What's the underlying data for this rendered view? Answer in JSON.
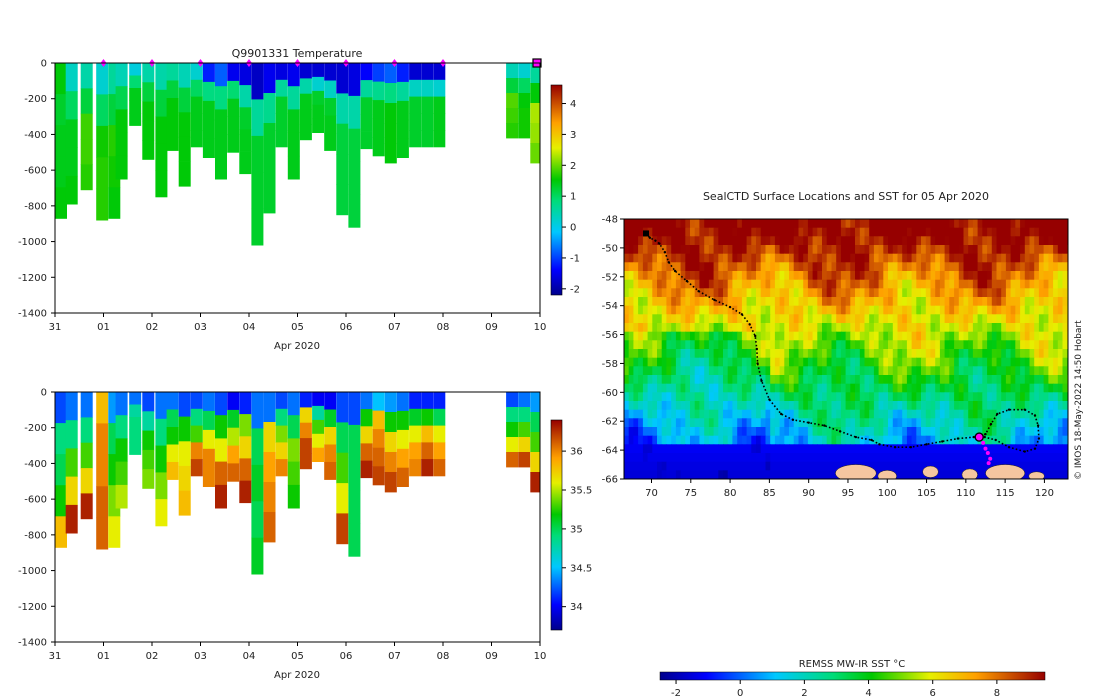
{
  "chart_data": [
    {
      "type": "heatmap",
      "title": "Q9901331  Temperature",
      "xlabel": "Apr 2020",
      "ylabel": "",
      "x_ticks": [
        "31",
        "01",
        "02",
        "03",
        "04",
        "05",
        "06",
        "07",
        "08",
        "09",
        "10"
      ],
      "y_ticks": [
        0,
        -200,
        -400,
        -600,
        -800,
        -1000,
        -1200,
        -1400
      ],
      "ylim": [
        -1400,
        0
      ],
      "colorbar": {
        "ticks": [
          4,
          3,
          2,
          1,
          0,
          -1,
          -2
        ],
        "range": [
          -2.2,
          4.6
        ]
      },
      "marker_days": [
        1,
        2,
        3,
        4,
        5,
        6,
        7,
        8
      ],
      "current_day": 10,
      "profiles": [
        {
          "day": 0.0,
          "depth": 870,
          "v": [
            1.5,
            1.3,
            1.4,
            1.4,
            1.5
          ]
        },
        {
          "day": 0.22,
          "depth": 790,
          "v": [
            0.3,
            1.0,
            1.4,
            1.4,
            1.5
          ]
        },
        {
          "day": 0.53,
          "depth": 710,
          "v": [
            0.5,
            1.2,
            1.8,
            1.8,
            1.7
          ]
        },
        {
          "day": 0.85,
          "depth": 880,
          "v": [
            0.2,
            1.0,
            1.6,
            1.7,
            1.7
          ]
        },
        {
          "day": 1.1,
          "depth": 870,
          "v": [
            0.6,
            1.2,
            1.7,
            1.6,
            1.5
          ]
        },
        {
          "day": 1.25,
          "depth": 650,
          "v": [
            0.4,
            1.1,
            1.5,
            1.5,
            1.5
          ]
        },
        {
          "day": 1.53,
          "depth": 350,
          "v": [
            0.1,
            0.9,
            1.4,
            1.4,
            1.4
          ]
        },
        {
          "day": 1.8,
          "depth": 540,
          "v": [
            0.5,
            1.2,
            1.5,
            1.5,
            1.5
          ]
        },
        {
          "day": 2.07,
          "depth": 750,
          "v": [
            0.5,
            1.2,
            1.5,
            1.5,
            1.5
          ]
        },
        {
          "day": 2.3,
          "depth": 490,
          "v": [
            0.6,
            1.2,
            1.5,
            1.5,
            1.5
          ]
        },
        {
          "day": 2.55,
          "depth": 690,
          "v": [
            0.4,
            1.2,
            1.5,
            1.5,
            1.5
          ]
        },
        {
          "day": 2.8,
          "depth": 470,
          "v": [
            0.2,
            1.0,
            1.4,
            1.4,
            1.4
          ]
        },
        {
          "day": 3.05,
          "depth": 530,
          "v": [
            -1.2,
            0.8,
            1.4,
            1.4,
            1.4
          ]
        },
        {
          "day": 3.3,
          "depth": 650,
          "v": [
            -0.8,
            0.8,
            1.4,
            1.4,
            1.4
          ]
        },
        {
          "day": 3.55,
          "depth": 500,
          "v": [
            -1.5,
            0.9,
            1.4,
            1.4,
            1.4
          ]
        },
        {
          "day": 3.8,
          "depth": 620,
          "v": [
            -1.6,
            0.5,
            1.3,
            1.4,
            1.4
          ]
        },
        {
          "day": 4.05,
          "depth": 1020,
          "v": [
            -1.8,
            0.6,
            1.3,
            1.3,
            1.3
          ]
        },
        {
          "day": 4.3,
          "depth": 840,
          "v": [
            -1.5,
            0.7,
            1.3,
            1.3,
            1.3
          ]
        },
        {
          "day": 4.55,
          "depth": 470,
          "v": [
            -1.6,
            0.6,
            1.3,
            1.3,
            1.3
          ]
        },
        {
          "day": 4.8,
          "depth": 650,
          "v": [
            -1.5,
            0.6,
            1.4,
            1.4,
            1.4
          ]
        },
        {
          "day": 5.05,
          "depth": 430,
          "v": [
            -1.7,
            0.5,
            1.4,
            1.4,
            1.4
          ]
        },
        {
          "day": 5.3,
          "depth": 390,
          "v": [
            -1.7,
            0.2,
            1.3,
            1.4,
            1.4
          ]
        },
        {
          "day": 5.55,
          "depth": 490,
          "v": [
            -1.7,
            0.3,
            1.3,
            1.4,
            1.4
          ]
        },
        {
          "day": 5.8,
          "depth": 850,
          "v": [
            -1.7,
            0.5,
            1.2,
            1.2,
            1.2
          ]
        },
        {
          "day": 6.05,
          "depth": 920,
          "v": [
            -1.6,
            0.5,
            1.2,
            1.2,
            1.2
          ]
        },
        {
          "day": 6.3,
          "depth": 480,
          "v": [
            -1.4,
            0.6,
            1.3,
            1.3,
            1.3
          ]
        },
        {
          "day": 6.55,
          "depth": 520,
          "v": [
            -1.0,
            0.7,
            1.4,
            1.4,
            1.4
          ]
        },
        {
          "day": 6.8,
          "depth": 560,
          "v": [
            -0.8,
            0.8,
            1.5,
            1.5,
            1.5
          ]
        },
        {
          "day": 7.05,
          "depth": 530,
          "v": [
            -1.2,
            0.6,
            1.4,
            1.4,
            1.4
          ]
        },
        {
          "day": 7.3,
          "depth": 470,
          "v": [
            -1.7,
            0.3,
            1.3,
            1.3,
            1.3
          ]
        },
        {
          "day": 7.55,
          "depth": 470,
          "v": [
            -1.7,
            0.3,
            1.3,
            1.3,
            1.3
          ]
        },
        {
          "day": 7.8,
          "depth": 470,
          "v": [
            -1.7,
            0.2,
            1.4,
            1.4,
            1.4
          ]
        },
        {
          "day": 9.3,
          "depth": 420,
          "v": [
            0.4,
            1.2,
            1.9,
            1.8,
            1.7
          ]
        },
        {
          "day": 9.55,
          "depth": 420,
          "v": [
            0.2,
            1.0,
            1.5,
            1.6,
            1.6
          ]
        },
        {
          "day": 9.8,
          "depth": 560,
          "v": [
            0.6,
            1.5,
            2.3,
            2.2,
            2.0
          ]
        }
      ]
    },
    {
      "type": "heatmap",
      "title": "",
      "xlabel": "Apr 2020",
      "ylabel": "",
      "x_ticks": [
        "31",
        "01",
        "02",
        "03",
        "04",
        "05",
        "06",
        "07",
        "08",
        "09",
        "10"
      ],
      "y_ticks": [
        0,
        -200,
        -400,
        -600,
        -800,
        -1000,
        -1200,
        -1400
      ],
      "ylim": [
        -1400,
        0
      ],
      "colorbar": {
        "ticks": [
          36,
          35.5,
          35,
          34.5,
          34
        ],
        "range": [
          33.7,
          36.4
        ]
      },
      "profiles": [
        {
          "day": 0.0,
          "depth": 870,
          "v": [
            34.2,
            34.9,
            35.0,
            35.2,
            35.8
          ]
        },
        {
          "day": 0.22,
          "depth": 790,
          "v": [
            34.3,
            34.9,
            35.3,
            35.7,
            36.3
          ]
        },
        {
          "day": 0.53,
          "depth": 710,
          "v": [
            34.3,
            34.9,
            35.3,
            35.7,
            36.3
          ]
        },
        {
          "day": 0.85,
          "depth": 880,
          "v": [
            35.8,
            36.0,
            36.0,
            36.1,
            36.1
          ]
        },
        {
          "day": 1.1,
          "depth": 870,
          "v": [
            34.4,
            35.0,
            35.2,
            35.4,
            35.6
          ]
        },
        {
          "day": 1.25,
          "depth": 650,
          "v": [
            34.3,
            34.9,
            35.2,
            35.3,
            35.5
          ]
        },
        {
          "day": 1.53,
          "depth": 350,
          "v": [
            34.3,
            34.8,
            34.9,
            34.9,
            34.9
          ]
        },
        {
          "day": 1.8,
          "depth": 540,
          "v": [
            34.2,
            34.8,
            35.2,
            35.3,
            35.4
          ]
        },
        {
          "day": 2.07,
          "depth": 750,
          "v": [
            34.3,
            34.9,
            35.2,
            35.4,
            35.6
          ]
        },
        {
          "day": 2.3,
          "depth": 490,
          "v": [
            34.3,
            35.0,
            35.2,
            35.6,
            35.8
          ]
        },
        {
          "day": 2.55,
          "depth": 690,
          "v": [
            34.2,
            35.2,
            35.6,
            35.7,
            35.8
          ]
        },
        {
          "day": 2.8,
          "depth": 470,
          "v": [
            34.2,
            34.9,
            35.3,
            36.0,
            36.2
          ]
        },
        {
          "day": 3.05,
          "depth": 530,
          "v": [
            34.3,
            35.0,
            35.6,
            36.0,
            36.0
          ]
        },
        {
          "day": 3.3,
          "depth": 650,
          "v": [
            34.2,
            35.2,
            35.6,
            36.1,
            36.3
          ]
        },
        {
          "day": 3.55,
          "depth": 500,
          "v": [
            34.0,
            35.1,
            35.5,
            35.9,
            36.1
          ]
        },
        {
          "day": 3.8,
          "depth": 620,
          "v": [
            34.1,
            35.4,
            35.7,
            36.1,
            36.3
          ]
        },
        {
          "day": 4.05,
          "depth": 1020,
          "v": [
            34.3,
            35.0,
            35.1,
            35.0,
            35.1
          ]
        },
        {
          "day": 4.3,
          "depth": 840,
          "v": [
            34.3,
            35.7,
            35.9,
            36.0,
            36.1
          ]
        },
        {
          "day": 4.55,
          "depth": 470,
          "v": [
            34.2,
            34.9,
            35.4,
            35.7,
            36.0
          ]
        },
        {
          "day": 4.8,
          "depth": 650,
          "v": [
            34.3,
            35.0,
            35.4,
            35.3,
            35.2
          ]
        },
        {
          "day": 5.05,
          "depth": 430,
          "v": [
            34.1,
            35.7,
            36.0,
            36.2,
            36.2
          ]
        },
        {
          "day": 5.3,
          "depth": 390,
          "v": [
            34.0,
            34.8,
            35.3,
            35.6,
            35.9
          ]
        },
        {
          "day": 5.55,
          "depth": 490,
          "v": [
            34.0,
            35.1,
            35.7,
            36.0,
            36.1
          ]
        },
        {
          "day": 5.8,
          "depth": 850,
          "v": [
            34.2,
            35.0,
            35.3,
            35.6,
            36.2
          ]
        },
        {
          "day": 6.05,
          "depth": 920,
          "v": [
            34.2,
            35.0,
            35.0,
            35.0,
            35.0
          ]
        },
        {
          "day": 6.3,
          "depth": 480,
          "v": [
            34.3,
            35.2,
            35.7,
            36.1,
            36.3
          ]
        },
        {
          "day": 6.55,
          "depth": 520,
          "v": [
            34.5,
            35.8,
            36.0,
            36.1,
            36.2
          ]
        },
        {
          "day": 6.8,
          "depth": 560,
          "v": [
            34.4,
            35.2,
            35.7,
            36.0,
            36.2
          ]
        },
        {
          "day": 7.05,
          "depth": 530,
          "v": [
            34.3,
            35.2,
            35.6,
            35.9,
            36.1
          ]
        },
        {
          "day": 7.3,
          "depth": 470,
          "v": [
            34.1,
            35.1,
            35.6,
            35.9,
            36.0
          ]
        },
        {
          "day": 7.55,
          "depth": 470,
          "v": [
            34.1,
            35.2,
            35.8,
            36.1,
            36.3
          ]
        },
        {
          "day": 7.8,
          "depth": 470,
          "v": [
            34.1,
            35.0,
            35.6,
            35.9,
            36.1
          ]
        },
        {
          "day": 9.3,
          "depth": 420,
          "v": [
            34.2,
            34.9,
            35.2,
            35.6,
            36.1
          ]
        },
        {
          "day": 9.55,
          "depth": 420,
          "v": [
            34.3,
            34.9,
            35.3,
            35.7,
            36.2
          ]
        },
        {
          "day": 9.8,
          "depth": 560,
          "v": [
            34.4,
            35.0,
            35.3,
            35.7,
            36.3
          ]
        }
      ]
    },
    {
      "type": "heatmap",
      "title": "SealCTD Surface Locations and SST for 05 Apr 2020",
      "xlabel": "",
      "ylabel": "",
      "x_ticks": [
        70,
        75,
        80,
        85,
        90,
        95,
        100,
        105,
        110,
        115,
        120
      ],
      "y_ticks": [
        -48,
        -50,
        -52,
        -54,
        -56,
        -58,
        -60,
        -62,
        -64,
        -66
      ],
      "xlim": [
        66.5,
        123
      ],
      "ylim": [
        -66,
        -48
      ],
      "colorbar_label": "REMSS MW-IR SST °C",
      "colorbar_ticks": [
        -2,
        0,
        2,
        4,
        6,
        8
      ],
      "colorbar_range": [
        -2.5,
        9.5
      ],
      "credit": "© IMOS 18-May-2022 14:50 Hobart",
      "track": [
        [
          69.3,
          -49.0
        ],
        [
          69.8,
          -49.3
        ],
        [
          70.5,
          -49.5
        ],
        [
          71.0,
          -49.7
        ],
        [
          71.7,
          -50.3
        ],
        [
          72.2,
          -51.0
        ],
        [
          73.0,
          -51.6
        ],
        [
          74.5,
          -52.3
        ],
        [
          76.0,
          -53.0
        ],
        [
          78.0,
          -53.6
        ],
        [
          80.0,
          -54.1
        ],
        [
          81.5,
          -54.6
        ],
        [
          82.5,
          -55.3
        ],
        [
          83.2,
          -56.1
        ],
        [
          83.4,
          -57.0
        ],
        [
          83.5,
          -58.0
        ],
        [
          84.0,
          -59.2
        ],
        [
          85.0,
          -60.5
        ],
        [
          86.5,
          -61.5
        ],
        [
          88.0,
          -61.9
        ],
        [
          90.0,
          -62.1
        ],
        [
          92.0,
          -62.3
        ],
        [
          94.0,
          -62.7
        ],
        [
          96.0,
          -63.1
        ],
        [
          98.0,
          -63.3
        ],
        [
          99.0,
          -63.6
        ],
        [
          101.0,
          -63.8
        ],
        [
          103.0,
          -63.8
        ],
        [
          105.0,
          -63.6
        ],
        [
          107.0,
          -63.4
        ],
        [
          109.0,
          -63.2
        ],
        [
          111.0,
          -63.1
        ],
        [
          112.5,
          -62.9
        ],
        [
          113.2,
          -62.2
        ],
        [
          114.0,
          -61.5
        ],
        [
          115.5,
          -61.2
        ],
        [
          117.5,
          -61.2
        ],
        [
          118.8,
          -61.6
        ],
        [
          119.2,
          -62.3
        ],
        [
          119.3,
          -63.2
        ],
        [
          118.8,
          -63.9
        ],
        [
          117.5,
          -64.1
        ],
        [
          115.5,
          -63.8
        ],
        [
          113.8,
          -63.3
        ],
        [
          112.4,
          -63.1
        ]
      ],
      "recent_positions": [
        [
          112.2,
          -63.5
        ],
        [
          112.5,
          -63.9
        ],
        [
          112.8,
          -64.2
        ],
        [
          113.1,
          -64.6
        ],
        [
          112.9,
          -64.9
        ]
      ],
      "current_position": [
        111.7,
        -63.1
      ]
    }
  ]
}
